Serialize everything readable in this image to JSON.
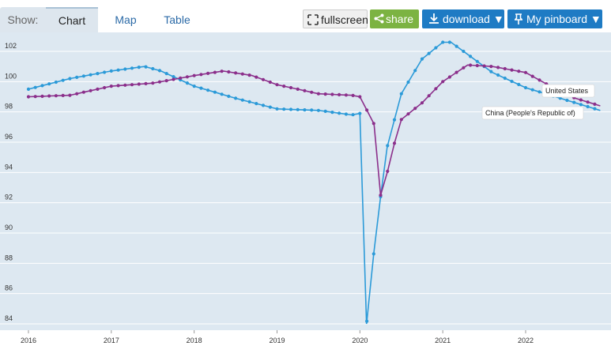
{
  "toolbar": {
    "show_label": "Show:",
    "tabs": [
      "Chart",
      "Map",
      "Table"
    ],
    "fullscreen_label": "fullscreen",
    "share_label": "share",
    "download_label": "download ▼",
    "pinboard_label": "My pinboard ▼"
  },
  "colors": {
    "united_states": "#2b9ad8",
    "china": "#8b2f8b",
    "plot_bg": "#dde8f1",
    "share_button": "#7cb342",
    "primary_button": "#1e7bc4"
  },
  "chart_data": {
    "type": "line",
    "title": "",
    "xlabel": "",
    "ylabel": "",
    "x_ticks": [
      "2016",
      "2017",
      "2018",
      "2019",
      "2020",
      "2021",
      "2022"
    ],
    "y_ticks": [
      "84",
      "86",
      "88",
      "90",
      "92",
      "94",
      "96",
      "98",
      "100",
      "102"
    ],
    "ylim": [
      83.5,
      103
    ],
    "xlim": [
      2016,
      2022.9
    ],
    "grid": true,
    "series": [
      {
        "name": "United States",
        "color": "#2b9ad8",
        "points": [
          [
            2016.0,
            99.5
          ],
          [
            2016.5,
            100.2
          ],
          [
            2017.0,
            100.7
          ],
          [
            2017.4,
            101.0
          ],
          [
            2017.6,
            100.7
          ],
          [
            2018.0,
            99.7
          ],
          [
            2018.5,
            98.9
          ],
          [
            2019.0,
            98.2
          ],
          [
            2019.5,
            98.1
          ],
          [
            2019.9,
            97.8
          ],
          [
            2020.0,
            97.9
          ],
          [
            2020.08,
            84.0
          ],
          [
            2020.17,
            88.8
          ],
          [
            2020.25,
            92.4
          ],
          [
            2020.33,
            95.7
          ],
          [
            2020.5,
            99.2
          ],
          [
            2020.75,
            101.5
          ],
          [
            2021.0,
            102.6
          ],
          [
            2021.1,
            102.6
          ],
          [
            2021.3,
            101.8
          ],
          [
            2021.6,
            100.6
          ],
          [
            2022.0,
            99.6
          ],
          [
            2022.3,
            99.1
          ],
          [
            2022.6,
            98.6
          ],
          [
            2022.9,
            98.1
          ]
        ]
      },
      {
        "name": "China (People's Republic of)",
        "color": "#8b2f8b",
        "points": [
          [
            2016.0,
            99.0
          ],
          [
            2016.5,
            99.1
          ],
          [
            2017.0,
            99.7
          ],
          [
            2017.5,
            99.9
          ],
          [
            2018.0,
            100.4
          ],
          [
            2018.35,
            100.7
          ],
          [
            2018.7,
            100.4
          ],
          [
            2019.0,
            99.8
          ],
          [
            2019.5,
            99.2
          ],
          [
            2019.9,
            99.1
          ],
          [
            2020.0,
            99.0
          ],
          [
            2020.17,
            97.2
          ],
          [
            2020.25,
            92.5
          ],
          [
            2020.33,
            94.0
          ],
          [
            2020.42,
            96.0
          ],
          [
            2020.5,
            97.5
          ],
          [
            2020.75,
            98.6
          ],
          [
            2021.0,
            100.0
          ],
          [
            2021.3,
            101.1
          ],
          [
            2021.6,
            101.0
          ],
          [
            2022.0,
            100.6
          ],
          [
            2022.3,
            99.7
          ],
          [
            2022.6,
            98.9
          ],
          [
            2022.9,
            98.4
          ]
        ]
      }
    ]
  }
}
